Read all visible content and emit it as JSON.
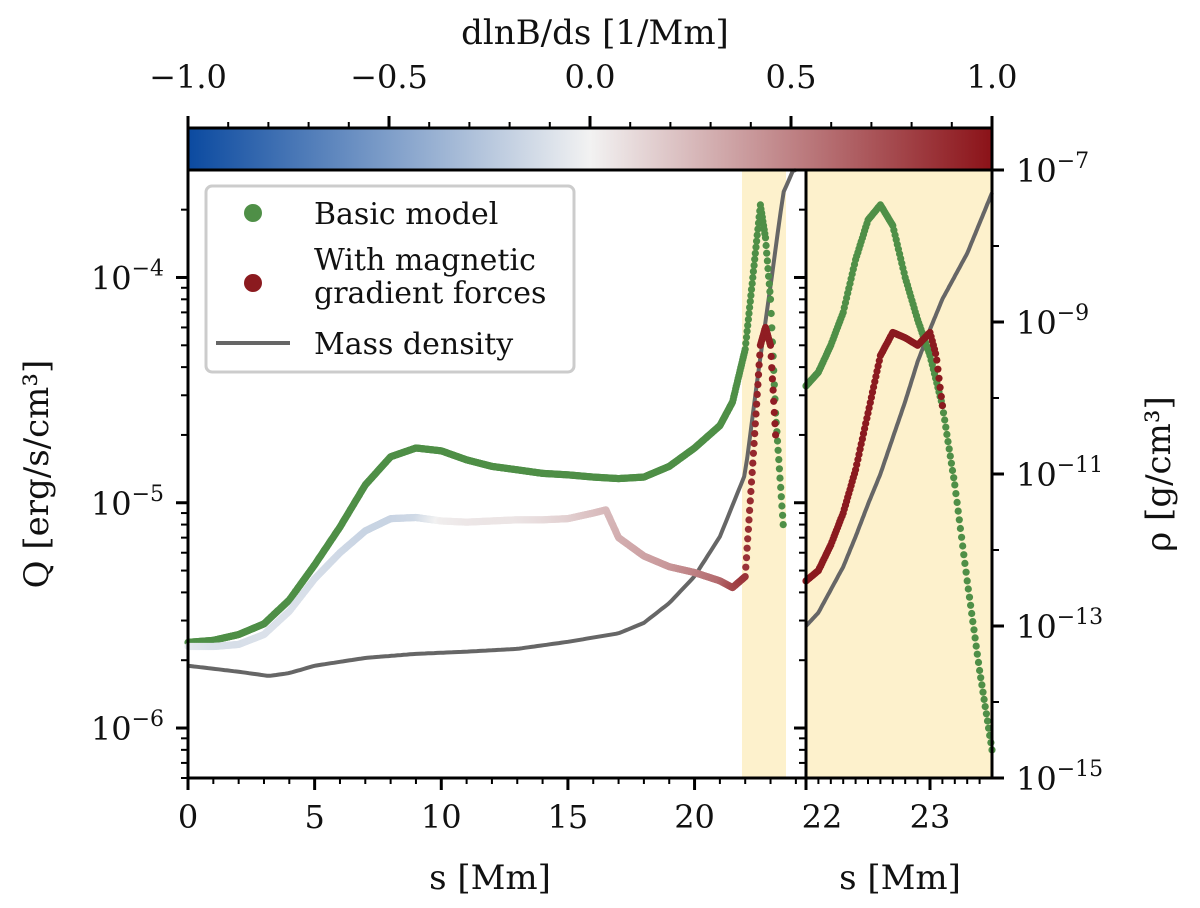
{
  "colors": {
    "basic": "#4f8f47",
    "magnetic": "#8b1a1f",
    "density": "#666666",
    "highlight": "#fdf1cc",
    "cmap_low": "#0b4aa0",
    "cmap_mid": "#f2f2f2",
    "cmap_high": "#8b1218"
  },
  "colorbar": {
    "label": "dlnB/ds [1/Mm]",
    "ticks": [
      "−1.0",
      "−0.5",
      "0.0",
      "0.5",
      "1.0"
    ],
    "range": [
      -1.0,
      1.0
    ]
  },
  "legend": {
    "basic": "Basic model",
    "magnetic_line1": "With magnetic",
    "magnetic_line2": "gradient forces",
    "density": "Mass density"
  },
  "axes": {
    "left_x_label": "s [Mm]",
    "right_x_label": "s [Mm]",
    "y_label": "Q [erg/s/cm³]",
    "y2_label": "ρ [g/cm³]",
    "left_x_ticks": [
      "0",
      "5",
      "10",
      "15",
      "20"
    ],
    "right_x_ticks": [
      "22",
      "23"
    ],
    "y_ticks": [
      {
        "base": "10",
        "exp": "−4"
      },
      {
        "base": "10",
        "exp": "−5"
      },
      {
        "base": "10",
        "exp": "−6"
      }
    ],
    "y2_ticks": [
      {
        "base": "10",
        "exp": "−7"
      },
      {
        "base": "10",
        "exp": "−9"
      },
      {
        "base": "10",
        "exp": "−11"
      },
      {
        "base": "10",
        "exp": "−13"
      },
      {
        "base": "10",
        "exp": "−15"
      }
    ]
  },
  "chart_data": [
    {
      "type": "scatter",
      "panel": "full domain",
      "xlim": [
        0,
        24.4
      ],
      "ylim_Q": [
        6e-07,
        0.0003
      ],
      "ylim_rho": [
        1e-15,
        1e-07
      ],
      "y_scale": "log",
      "highlight_region": [
        22,
        24.4
      ],
      "series": [
        {
          "name": "Basic model",
          "kind": "points",
          "x": [
            0,
            1,
            2,
            3,
            4,
            5,
            6,
            7,
            8,
            9,
            10,
            11,
            12,
            13,
            14,
            15,
            16,
            17,
            18,
            19,
            20,
            21,
            21.5,
            22,
            22.3,
            22.6,
            22.8,
            23,
            23.2,
            23.5
          ],
          "y": [
            2.4e-06,
            2.45e-06,
            2.6e-06,
            2.9e-06,
            3.7e-06,
            5.3e-06,
            7.8e-06,
            1.2e-05,
            1.6e-05,
            1.75e-05,
            1.7e-05,
            1.55e-05,
            1.45e-05,
            1.4e-05,
            1.35e-05,
            1.33e-05,
            1.3e-05,
            1.28e-05,
            1.3e-05,
            1.45e-05,
            1.75e-05,
            2.2e-05,
            2.8e-05,
            4.8e-05,
            0.0001,
            0.00021,
            0.00015,
            8e-05,
            2.5e-05,
            8e-06
          ]
        },
        {
          "name": "With magnetic gradient forces",
          "kind": "points",
          "x": [
            0,
            1,
            2,
            3,
            4,
            5,
            6,
            7,
            8,
            9,
            10,
            11,
            12,
            13,
            14,
            15,
            16,
            16.5,
            17,
            18,
            19,
            20,
            21,
            21.5,
            22,
            22.3,
            22.6,
            22.8,
            23,
            23.2
          ],
          "y": [
            2.3e-06,
            2.3e-06,
            2.35e-06,
            2.6e-06,
            3.3e-06,
            4.6e-06,
            6e-06,
            7.5e-06,
            8.5e-06,
            8.6e-06,
            8.3e-06,
            8.2e-06,
            8.3e-06,
            8.4e-06,
            8.4e-06,
            8.5e-06,
            9e-06,
            9.3e-06,
            7e-06,
            5.8e-06,
            5.2e-06,
            4.9e-06,
            4.5e-06,
            4.2e-06,
            4.7e-06,
            1.5e-05,
            5e-05,
            6e-05,
            5e-05,
            2e-05
          ],
          "dlnB_ds": [
            -0.05,
            -0.1,
            -0.12,
            -0.1,
            -0.1,
            -0.12,
            -0.15,
            -0.18,
            -0.18,
            -0.15,
            0.02,
            0.05,
            0.06,
            0.06,
            0.1,
            0.15,
            0.22,
            0.25,
            0.3,
            0.35,
            0.4,
            0.5,
            0.6,
            0.75,
            0.85,
            0.9,
            0.95,
            0.95,
            0.95,
            0.95
          ]
        },
        {
          "name": "Mass density",
          "kind": "line",
          "axis": "rho",
          "x": [
            0,
            2,
            3.2,
            4,
            5,
            7,
            9,
            11,
            13,
            15,
            17,
            18,
            19,
            20,
            21,
            22,
            22.5,
            23,
            23.5,
            24.0
          ],
          "y": [
            3e-14,
            2.5e-14,
            2.2e-14,
            2.4e-14,
            3e-14,
            3.8e-14,
            4.3e-14,
            4.6e-14,
            5e-14,
            6.2e-14,
            8e-14,
            1.1e-13,
            2e-13,
            4.5e-13,
            1.5e-12,
            1e-11,
            2e-10,
            3e-09,
            5e-08,
            1.2e-07
          ]
        }
      ]
    },
    {
      "type": "scatter",
      "panel": "zoom",
      "xlim": [
        22,
        23.5
      ],
      "ylim_Q": [
        6e-07,
        0.0003
      ],
      "ylim_rho": [
        1e-15,
        1e-07
      ],
      "y_scale": "log",
      "series": [
        {
          "name": "Basic model",
          "kind": "points",
          "x": [
            22.0,
            22.1,
            22.2,
            22.3,
            22.4,
            22.5,
            22.6,
            22.7,
            22.8,
            22.9,
            23.0,
            23.1,
            23.2,
            23.3,
            23.4,
            23.5
          ],
          "y": [
            3.3e-05,
            3.8e-05,
            5e-05,
            7e-05,
            0.00012,
            0.00018,
            0.00021,
            0.00017,
            0.0001,
            6.5e-05,
            4.5e-05,
            2.7e-05,
            1.2e-05,
            4.5e-06,
            1.8e-06,
            8e-07
          ]
        },
        {
          "name": "With magnetic gradient forces",
          "kind": "points",
          "x": [
            22.0,
            22.1,
            22.2,
            22.3,
            22.4,
            22.5,
            22.6,
            22.7,
            22.8,
            22.9,
            23.0,
            23.05,
            23.1
          ],
          "y": [
            4.5e-06,
            5e-06,
            6.5e-06,
            9e-06,
            1.4e-05,
            2.5e-05,
            4.5e-05,
            5.7e-05,
            5.4e-05,
            5e-05,
            5.7e-05,
            4.5e-05,
            2.7e-05
          ]
        },
        {
          "name": "Mass density",
          "kind": "line",
          "axis": "rho",
          "x": [
            22.0,
            22.1,
            22.2,
            22.3,
            22.4,
            22.5,
            22.6,
            22.7,
            22.8,
            22.9,
            23.0,
            23.1,
            23.2,
            23.3,
            23.4,
            23.5
          ],
          "y": [
            1e-13,
            1.5e-13,
            3e-13,
            6e-13,
            1.5e-12,
            4e-12,
            1e-11,
            3e-11,
            9e-11,
            3e-10,
            8e-10,
            2e-09,
            4e-09,
            8e-09,
            2e-08,
            5e-08
          ]
        }
      ]
    }
  ]
}
